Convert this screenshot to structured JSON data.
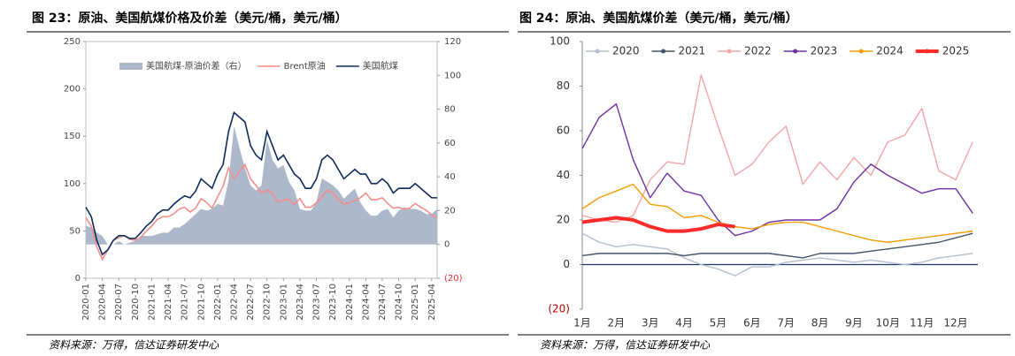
{
  "chart_data": [
    {
      "type": "line",
      "title": "图 23：原油、美国航煤价格及价差（美元/桶，美元/桶）",
      "source": "资料来源：万得，信达证券研发中心",
      "categories": [
        "2020-01",
        null,
        null,
        "2020-04",
        null,
        null,
        "2020-07",
        null,
        null,
        "2020-10",
        null,
        null,
        "2021-01",
        null,
        null,
        "2021-04",
        null,
        null,
        "2021-07",
        null,
        null,
        "2021-10",
        null,
        null,
        "2022-01",
        null,
        null,
        "2022-04",
        null,
        null,
        "2022-07",
        null,
        null,
        "2022-10",
        null,
        null,
        "2023-01",
        null,
        null,
        "2023-04",
        null,
        null,
        "2023-07",
        null,
        null,
        "2023-10",
        null,
        null,
        "2024-01",
        null,
        null,
        "2024-04",
        null,
        null,
        "2024-07",
        null,
        null,
        "2024-10",
        null,
        null,
        "2025-01",
        null,
        null,
        "2025-04",
        null
      ],
      "series": [
        {
          "name": "美国航煤-原油价差（右）",
          "type": "area",
          "axis": "y2",
          "color": "#adb9ca",
          "values": [
            11,
            10,
            7,
            5,
            0,
            0,
            2,
            0,
            1,
            2,
            5,
            5,
            5,
            6,
            7,
            7,
            10,
            10,
            12,
            15,
            18,
            21,
            20,
            21,
            24,
            23,
            38,
            70,
            57,
            45,
            35,
            32,
            35,
            62,
            50,
            45,
            47,
            37,
            32,
            21,
            20,
            20,
            25,
            39,
            37,
            35,
            32,
            27,
            30,
            33,
            25,
            20,
            17,
            17,
            20,
            21,
            16,
            20,
            22,
            21,
            21,
            20,
            18,
            18,
            21
          ]
        },
        {
          "name": "Brent原油",
          "type": "line",
          "color": "#f28e8e",
          "values": [
            64,
            55,
            33,
            20,
            30,
            40,
            43,
            45,
            41,
            40,
            43,
            50,
            55,
            62,
            65,
            65,
            68,
            73,
            75,
            70,
            74,
            84,
            80,
            74,
            86,
            97,
            117,
            105,
            113,
            120,
            105,
            98,
            90,
            93,
            90,
            80,
            83,
            83,
            78,
            84,
            75,
            75,
            80,
            86,
            93,
            90,
            83,
            78,
            80,
            82,
            85,
            90,
            83,
            83,
            85,
            79,
            74,
            75,
            73,
            74,
            79,
            75,
            72,
            67,
            64
          ]
        },
        {
          "name": "美国航煤",
          "type": "line",
          "color": "#0f2b5b",
          "values": [
            75,
            65,
            40,
            25,
            30,
            40,
            45,
            45,
            42,
            42,
            48,
            55,
            60,
            68,
            72,
            72,
            78,
            83,
            87,
            85,
            92,
            105,
            100,
            95,
            110,
            120,
            155,
            175,
            170,
            165,
            140,
            130,
            125,
            155,
            140,
            125,
            130,
            120,
            110,
            105,
            95,
            95,
            105,
            125,
            130,
            125,
            115,
            105,
            110,
            115,
            110,
            110,
            100,
            100,
            105,
            100,
            90,
            95,
            95,
            95,
            100,
            95,
            90,
            85,
            85
          ]
        }
      ],
      "ylim": [
        0,
        250
      ],
      "yticks": [
        0,
        50,
        100,
        150,
        200,
        250
      ],
      "y2lim": [
        -20,
        120
      ],
      "y2ticks": [
        {
          "value": -20,
          "label": "(20)"
        },
        0,
        20,
        40,
        60,
        80,
        100,
        120
      ],
      "legend": "top"
    },
    {
      "type": "line",
      "title": "图 24：原油、美国航煤价差（美元/桶，美元/桶）",
      "source": "资料来源：万得，信达证券研发中心",
      "x": [
        1,
        1.5,
        2,
        2.5,
        3,
        3.5,
        4,
        4.5,
        5,
        5.5,
        6,
        6.5,
        7,
        7.5,
        8,
        8.5,
        9,
        9.5,
        10,
        10.5,
        11,
        11.5,
        12,
        12.5
      ],
      "xlim": [
        1,
        12.65
      ],
      "xticks": [
        {
          "value": 1,
          "label": "1月"
        },
        {
          "value": 2,
          "label": "2月"
        },
        {
          "value": 3,
          "label": "3月"
        },
        {
          "value": 4,
          "label": "4月"
        },
        {
          "value": 5,
          "label": "5月"
        },
        {
          "value": 6,
          "label": "6月"
        },
        {
          "value": 7,
          "label": "7月"
        },
        {
          "value": 8,
          "label": "8月"
        },
        {
          "value": 9,
          "label": "9月"
        },
        {
          "value": 10,
          "label": "10月"
        },
        {
          "value": 11,
          "label": "11月"
        },
        {
          "value": 12,
          "label": "12月"
        }
      ],
      "series": [
        {
          "name": "2020",
          "color": "#b4bfd0",
          "values": [
            14,
            10,
            8,
            9,
            8,
            7,
            3,
            0,
            -2,
            -5,
            -1,
            -1,
            1,
            2,
            3,
            2,
            1,
            2,
            1,
            0,
            1,
            3,
            4,
            5
          ]
        },
        {
          "name": "2021",
          "color": "#44546a",
          "values": [
            4,
            5,
            5,
            5,
            5,
            5,
            4,
            5,
            5,
            5,
            5,
            5,
            4,
            3,
            5,
            5,
            5,
            6,
            7,
            8,
            9,
            10,
            12,
            14
          ]
        },
        {
          "name": "2022",
          "color": "#f4a6a6",
          "values": [
            22,
            20,
            19,
            22,
            38,
            46,
            45,
            85,
            62,
            40,
            45,
            55,
            62,
            36,
            46,
            38,
            48,
            40,
            55,
            58,
            70,
            42,
            38,
            55
          ]
        },
        {
          "name": "2023",
          "color": "#7030a0",
          "values": [
            52,
            66,
            72,
            47,
            30,
            41,
            33,
            31,
            20,
            13,
            15,
            19,
            20,
            20,
            20,
            25,
            37,
            45,
            40,
            36,
            32,
            34,
            34,
            23
          ]
        },
        {
          "name": "2024",
          "color": "#f59c00",
          "values": [
            25,
            30,
            33,
            36,
            27,
            26,
            21,
            22,
            19,
            17,
            16,
            18,
            19,
            19,
            17,
            15,
            13,
            11,
            10,
            11,
            12,
            13,
            14,
            15
          ]
        },
        {
          "name": "2025",
          "color": "#ff2b2b",
          "width": 4,
          "values": [
            19,
            20,
            21,
            20,
            17,
            15,
            15,
            16,
            18,
            17,
            null,
            null,
            null,
            null,
            null,
            null,
            null,
            null,
            null,
            null,
            null,
            null,
            null,
            null
          ]
        }
      ],
      "ylim": [
        -20,
        100
      ],
      "yticks": [
        {
          "value": -20,
          "label": "(20)"
        },
        0,
        20,
        40,
        60,
        80,
        100
      ],
      "legend": "top"
    }
  ]
}
